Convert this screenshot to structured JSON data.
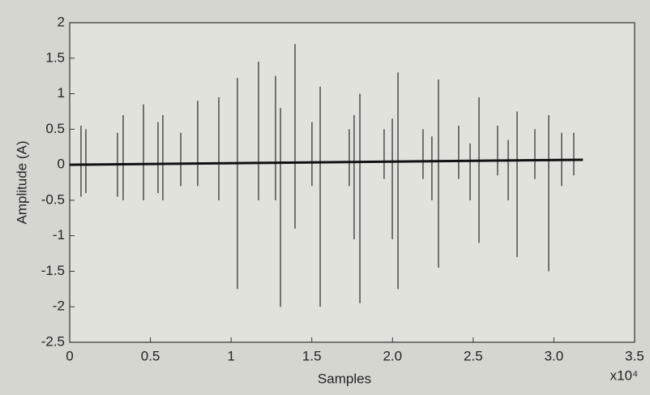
{
  "chart_data": {
    "type": "spikes",
    "xlabel": "Samples",
    "ylabel": "Amplitude (A)",
    "x_exponent": "x10⁴",
    "xlim": [
      0,
      35000
    ],
    "ylim": [
      -2.5,
      2
    ],
    "xticks": [
      0,
      {
        "value": 5000,
        "label": "0.5"
      },
      {
        "value": 10000,
        "label": "1"
      },
      {
        "value": 15000,
        "label": "1.5"
      },
      {
        "value": 20000,
        "label": "2.0"
      },
      {
        "value": 25000,
        "label": "2.5"
      },
      {
        "value": 30000,
        "label": "3.0"
      },
      {
        "value": 35000,
        "label": "3.5"
      }
    ],
    "yticks": [
      -2.5,
      -2,
      -1.5,
      -1,
      -0.5,
      0,
      0.5,
      1,
      1.5,
      2
    ],
    "spike_color": "#555555",
    "baseline_color": "#111111",
    "x": [
      700,
      1000,
      2960,
      3310,
      4570,
      5470,
      5770,
      6880,
      7930,
      9240,
      10390,
      11700,
      12750,
      13060,
      13960,
      15010,
      15520,
      17320,
      17620,
      17980,
      19480,
      19990,
      20340,
      21890,
      22440,
      22850,
      24100,
      24810,
      25360,
      26510,
      27170,
      27720,
      28820,
      29680,
      30480,
      31230
    ],
    "high": [
      0.55,
      0.5,
      0.45,
      0.7,
      0.85,
      0.6,
      0.7,
      0.45,
      0.9,
      0.95,
      1.22,
      1.45,
      1.25,
      0.8,
      1.7,
      0.6,
      1.1,
      0.5,
      0.7,
      1.0,
      0.5,
      0.65,
      1.3,
      0.5,
      0.4,
      1.2,
      0.55,
      0.3,
      0.95,
      0.55,
      0.35,
      0.75,
      0.5,
      0.7,
      0.45,
      0.45
    ],
    "low": [
      -0.45,
      -0.4,
      -0.45,
      -0.5,
      -0.5,
      -0.4,
      -0.5,
      -0.3,
      -0.3,
      -0.5,
      -1.75,
      -0.5,
      -0.5,
      -2.0,
      -0.9,
      -0.3,
      -2.0,
      -0.3,
      -1.05,
      -1.95,
      -0.2,
      -1.05,
      -1.75,
      -0.2,
      -0.5,
      -1.45,
      -0.2,
      -0.5,
      -1.1,
      -0.15,
      -0.5,
      -1.3,
      -0.2,
      -1.5,
      -0.3,
      -0.15
    ],
    "baseline": {
      "x": [
        0,
        31800
      ],
      "values": [
        0,
        0.07
      ]
    }
  }
}
